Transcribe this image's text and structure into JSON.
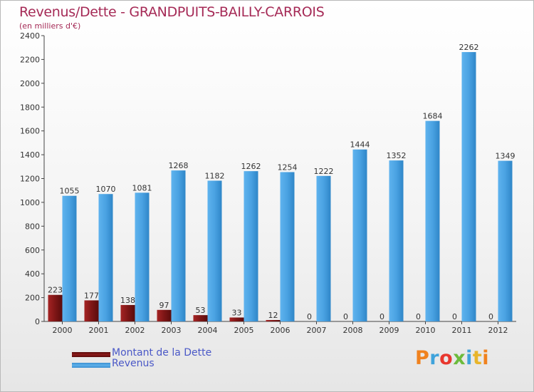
{
  "colors": {
    "title": "#a52a56",
    "dette": "#8b1a1a",
    "revenus": "#4aa0de",
    "legend_text": "#4a58c7",
    "brand": [
      "#f0821e",
      "#3fa3db",
      "#e8372e",
      "#6cbb3c",
      "#3fa3db",
      "#e8b52b"
    ]
  },
  "chart_data": {
    "type": "bar",
    "title": "Revenus/Dette - GRANDPUITS-BAILLY-CARROIS",
    "subtitle": "(en milliers d'€)",
    "xlabel": "",
    "ylabel": "",
    "ylim": [
      0,
      2400
    ],
    "yticks": [
      0,
      200,
      400,
      600,
      800,
      1000,
      1200,
      1400,
      1600,
      1800,
      2000,
      2200,
      2400
    ],
    "grid": false,
    "legend_position": "bottom-left",
    "categories": [
      "2000",
      "2001",
      "2002",
      "2003",
      "2004",
      "2005",
      "2006",
      "2007",
      "2008",
      "2009",
      "2010",
      "2011",
      "2012"
    ],
    "series": [
      {
        "name": "Montant de la Dette",
        "color": "#8b1a1a",
        "values": [
          223,
          177,
          138,
          97,
          53,
          33,
          12,
          0,
          0,
          0,
          0,
          0,
          0
        ]
      },
      {
        "name": "Revenus",
        "color": "#4aa0de",
        "values": [
          1055,
          1070,
          1081,
          1268,
          1182,
          1262,
          1254,
          1222,
          1444,
          1352,
          1684,
          2262,
          1349
        ]
      }
    ]
  },
  "legend": {
    "dette_label": "Montant de la Dette",
    "revenus_label": "Revenus"
  },
  "brand": {
    "letters": [
      "P",
      "r",
      "o",
      "x",
      "i",
      "t",
      "i"
    ]
  }
}
